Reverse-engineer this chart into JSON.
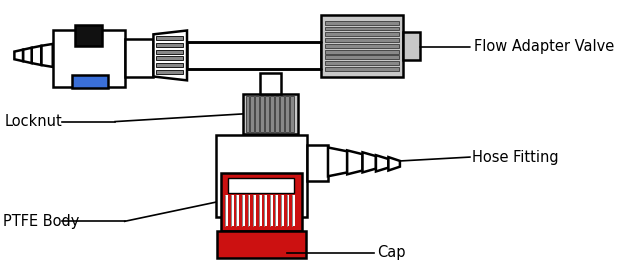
{
  "bg_color": "#ffffff",
  "outline_color": "#000000",
  "gray_fill": "#c8c8c8",
  "dark_gray": "#888888",
  "white_fill": "#ffffff",
  "red_fill": "#cc1111",
  "dark_red": "#aa0000",
  "blue_fill": "#3a6fd8",
  "black_fill": "#111111",
  "label_font_size": 10.5,
  "labels": {
    "flow_adapter_valve": "Flow Adapter Valve",
    "locknut": "Locknut",
    "hose_fitting": "Hose Fitting",
    "ptfe_body": "PTFE Body",
    "cap": "Cap"
  },
  "figsize": [
    6.4,
    2.71
  ],
  "dpi": 100
}
